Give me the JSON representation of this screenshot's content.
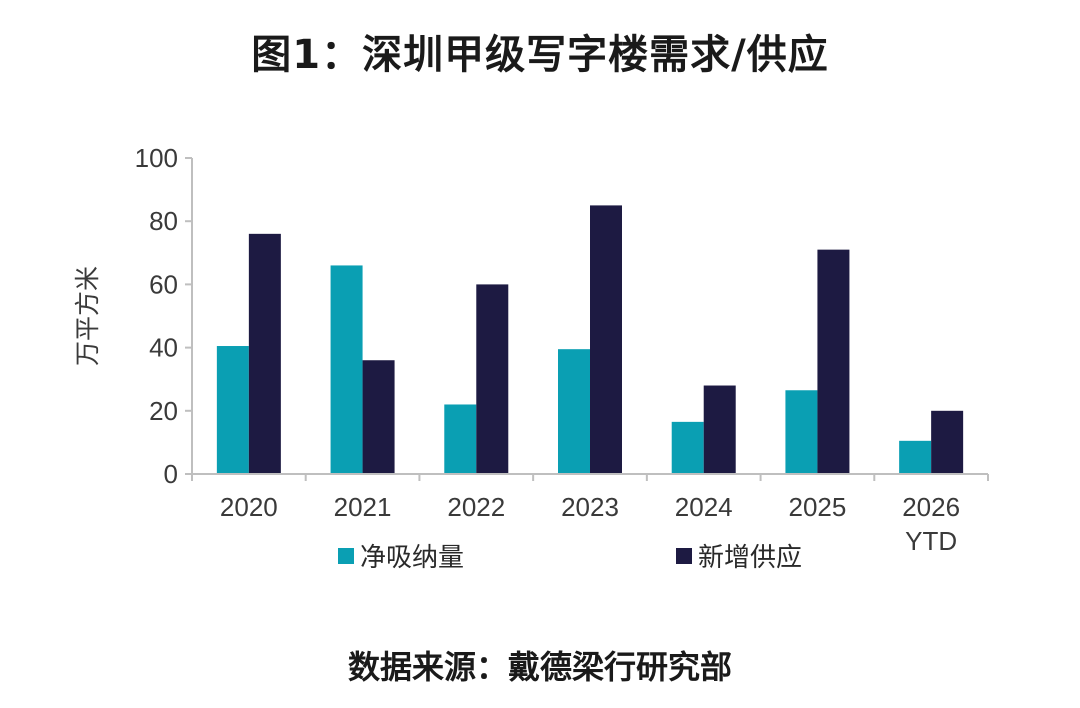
{
  "title": "图1：深圳甲级写字楼需求/供应",
  "source": "数据来源：戴德梁行研究部",
  "colors": {
    "net_absorption": "#0a9fb3",
    "new_supply": "#1d1a42",
    "axis": "#bfbfbf"
  },
  "chart_data": {
    "type": "bar",
    "title": "图1：深圳甲级写字楼需求/供应",
    "xlabel": "",
    "ylabel": "万平方米",
    "ylim": [
      0,
      100
    ],
    "yticks": [
      0,
      20,
      40,
      60,
      80,
      100
    ],
    "grid": false,
    "legend_position": "bottom",
    "categories": [
      "2020",
      "2021",
      "2022",
      "2023",
      "2024",
      "2025",
      "2026 YTD"
    ],
    "series": [
      {
        "name": "净吸纳量",
        "color": "#0a9fb3",
        "values": [
          40.5,
          66,
          22,
          39.5,
          16.5,
          26.5,
          10.5
        ]
      },
      {
        "name": "新增供应",
        "color": "#1d1a42",
        "values": [
          76,
          36,
          60,
          85,
          28,
          71,
          20
        ]
      }
    ]
  }
}
